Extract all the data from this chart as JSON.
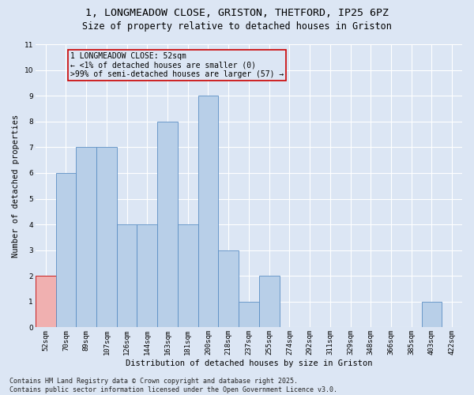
{
  "title_line1": "1, LONGMEADOW CLOSE, GRISTON, THETFORD, IP25 6PZ",
  "title_line2": "Size of property relative to detached houses in Griston",
  "xlabel": "Distribution of detached houses by size in Griston",
  "ylabel": "Number of detached properties",
  "categories": [
    "52sqm",
    "70sqm",
    "89sqm",
    "107sqm",
    "126sqm",
    "144sqm",
    "163sqm",
    "181sqm",
    "200sqm",
    "218sqm",
    "237sqm",
    "255sqm",
    "274sqm",
    "292sqm",
    "311sqm",
    "329sqm",
    "348sqm",
    "366sqm",
    "385sqm",
    "403sqm",
    "422sqm"
  ],
  "values": [
    2,
    6,
    7,
    7,
    4,
    4,
    8,
    4,
    9,
    3,
    1,
    2,
    0,
    0,
    0,
    0,
    0,
    0,
    0,
    1,
    0
  ],
  "highlight_index": 0,
  "bar_color": "#b8cfe8",
  "bar_edge_color": "#5b8ec4",
  "highlight_bar_color": "#f0b0b0",
  "highlight_bar_edge_color": "#c00000",
  "background_color": "#dce6f4",
  "grid_color": "#ffffff",
  "ylim": [
    0,
    11
  ],
  "yticks": [
    0,
    1,
    2,
    3,
    4,
    5,
    6,
    7,
    8,
    9,
    10,
    11
  ],
  "annotation_text": "1 LONGMEADOW CLOSE: 52sqm\n← <1% of detached houses are smaller (0)\n>99% of semi-detached houses are larger (57) →",
  "annotation_box_edge_color": "#cc0000",
  "footer_text": "Contains HM Land Registry data © Crown copyright and database right 2025.\nContains public sector information licensed under the Open Government Licence v3.0.",
  "title_fontsize": 9.5,
  "subtitle_fontsize": 8.5,
  "axis_label_fontsize": 7.5,
  "tick_fontsize": 6.5,
  "annotation_fontsize": 7,
  "footer_fontsize": 6
}
